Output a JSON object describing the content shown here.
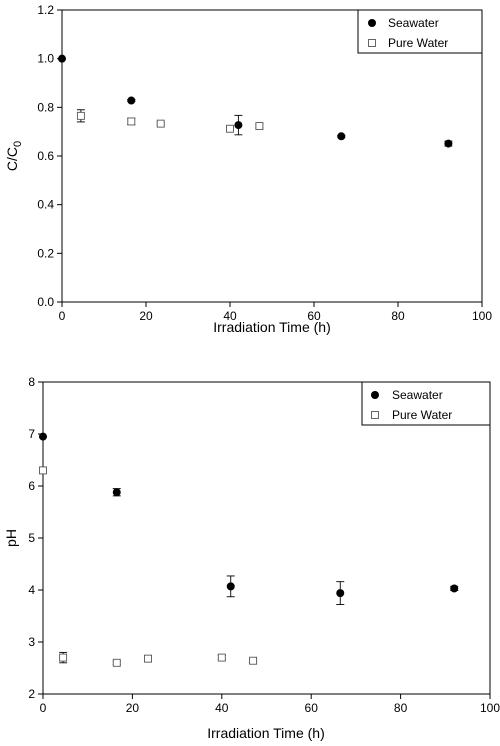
{
  "chart_data": [
    {
      "type": "scatter",
      "title": "",
      "xlabel": "Irradiation Time (h)",
      "ylabel": "C/C0",
      "xlim": [
        0,
        100
      ],
      "ylim": [
        0.0,
        1.2
      ],
      "xticks": [
        0,
        20,
        40,
        60,
        80,
        100
      ],
      "yticks": [
        0.0,
        0.2,
        0.4,
        0.6,
        0.8,
        1.0,
        1.2
      ],
      "ytick_labels": [
        "0.0",
        "0.2",
        "0.4",
        "0.6",
        "0.8",
        "1.0",
        "1.2"
      ],
      "grid": false,
      "legend": "top-right",
      "series": [
        {
          "name": "Seawater",
          "marker": "filled-circle",
          "color": "#000000",
          "points": [
            {
              "x": 0,
              "y": 1.0,
              "err": 0
            },
            {
              "x": 16.5,
              "y": 0.828,
              "err": 0.004
            },
            {
              "x": 42,
              "y": 0.727,
              "err": 0.04
            },
            {
              "x": 66.5,
              "y": 0.681,
              "err": 0.004
            },
            {
              "x": 92,
              "y": 0.651,
              "err": 0.01
            }
          ]
        },
        {
          "name": "Pure Water",
          "marker": "open-square",
          "color": "#555555",
          "points": [
            {
              "x": 4.5,
              "y": 0.765,
              "err": 0.025
            },
            {
              "x": 16.5,
              "y": 0.742,
              "err": 0.013
            },
            {
              "x": 23.5,
              "y": 0.733,
              "err": 0.006
            },
            {
              "x": 40,
              "y": 0.712,
              "err": 0.005
            },
            {
              "x": 47,
              "y": 0.723,
              "err": 0.008
            }
          ]
        }
      ]
    },
    {
      "type": "scatter",
      "title": "",
      "xlabel": "Irradiation Time (h)",
      "ylabel": "pH",
      "xlim": [
        0,
        100
      ],
      "ylim": [
        2,
        8
      ],
      "xticks": [
        0,
        20,
        40,
        60,
        80,
        100
      ],
      "yticks": [
        2,
        3,
        4,
        5,
        6,
        7,
        8
      ],
      "ytick_labels": [
        "2",
        "3",
        "4",
        "5",
        "6",
        "7",
        "8"
      ],
      "grid": false,
      "legend": "top-right",
      "series": [
        {
          "name": "Seawater",
          "marker": "filled-circle",
          "color": "#000000",
          "points": [
            {
              "x": 0,
              "y": 6.95,
              "err": 0
            },
            {
              "x": 16.5,
              "y": 5.88,
              "err": 0.07
            },
            {
              "x": 42,
              "y": 4.07,
              "err": 0.2
            },
            {
              "x": 66.5,
              "y": 3.94,
              "err": 0.22
            },
            {
              "x": 92,
              "y": 4.03,
              "err": 0.04
            }
          ]
        },
        {
          "name": "Pure Water",
          "marker": "open-square",
          "color": "#555555",
          "points": [
            {
              "x": 0,
              "y": 6.3,
              "err": 0
            },
            {
              "x": 4.5,
              "y": 2.7,
              "err": 0.1
            },
            {
              "x": 16.5,
              "y": 2.6,
              "err": 0.03
            },
            {
              "x": 23.5,
              "y": 2.68,
              "err": 0.06
            },
            {
              "x": 40,
              "y": 2.7,
              "err": 0.04
            },
            {
              "x": 47,
              "y": 2.64,
              "err": 0.03
            }
          ]
        }
      ]
    }
  ]
}
